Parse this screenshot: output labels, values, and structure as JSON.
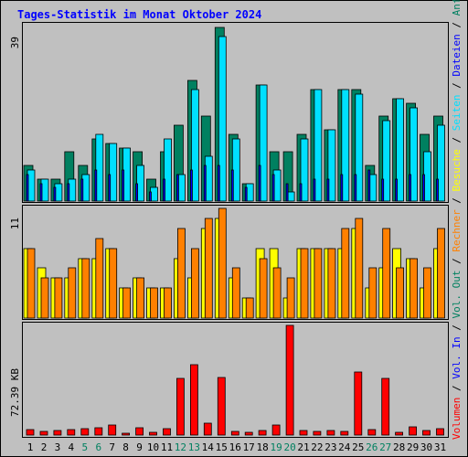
{
  "chart_data": [
    {
      "type": "bar",
      "title": "Tages-Statistik im Monat Oktober 2024",
      "y_max_label": "39",
      "categories": [
        "1",
        "2",
        "3",
        "4",
        "5",
        "6",
        "7",
        "8",
        "9",
        "10",
        "11",
        "12",
        "13",
        "14",
        "15",
        "16",
        "17",
        "18",
        "19",
        "20",
        "21",
        "22",
        "23",
        "24",
        "25",
        "26",
        "27",
        "28",
        "29",
        "30",
        "31"
      ],
      "weekend_days": [
        "5",
        "6",
        "12",
        "13",
        "19",
        "20",
        "26",
        "27"
      ],
      "ylim": [
        0,
        39
      ],
      "series": [
        {
          "name": "Anfragen",
          "color": "#008060",
          "values": [
            8,
            5,
            5,
            11,
            8,
            14,
            13,
            12,
            11,
            5,
            11,
            17,
            27,
            19,
            39,
            15,
            4,
            26,
            11,
            11,
            15,
            25,
            16,
            25,
            25,
            8,
            19,
            23,
            22,
            15,
            19
          ]
        },
        {
          "name": "Seiten",
          "color": "#00e0ff",
          "values": [
            7,
            5,
            4,
            5,
            6,
            15,
            13,
            12,
            8,
            3,
            14,
            6,
            25,
            10,
            37,
            14,
            4,
            26,
            7,
            2,
            14,
            25,
            16,
            25,
            24,
            6,
            18,
            23,
            21,
            11,
            17
          ]
        },
        {
          "name": "Dateien",
          "color": "#0000ff",
          "values": [
            6,
            4,
            3,
            4,
            5,
            7,
            6,
            7,
            4,
            2,
            5,
            6,
            7,
            8,
            8,
            7,
            3,
            8,
            6,
            4,
            4,
            5,
            5,
            6,
            6,
            7,
            5,
            5,
            6,
            6,
            5
          ]
        }
      ],
      "right_labels": [
        {
          "text": "Anfragen",
          "color": "#008060"
        },
        {
          "text": "Dateien",
          "color": "#0000ff"
        },
        {
          "text": "Seiten",
          "color": "#00e0ff"
        }
      ]
    },
    {
      "type": "bar",
      "y_max_label": "11",
      "ylim": [
        0,
        11
      ],
      "series": [
        {
          "name": "Besuche",
          "color": "#ffff00",
          "values": [
            7,
            5,
            4,
            4,
            6,
            6,
            7,
            3,
            4,
            3,
            3,
            6,
            4,
            9,
            10,
            4,
            2,
            7,
            7,
            2,
            7,
            7,
            7,
            7,
            9,
            3,
            5,
            7,
            6,
            3,
            7
          ]
        },
        {
          "name": "Rechner",
          "color": "#ff8000",
          "values": [
            7,
            4,
            4,
            5,
            6,
            8,
            7,
            3,
            4,
            3,
            3,
            9,
            7,
            10,
            11,
            5,
            2,
            6,
            5,
            4,
            7,
            7,
            7,
            9,
            10,
            5,
            9,
            5,
            6,
            5,
            9
          ]
        }
      ],
      "right_labels": [
        {
          "text": "Besuche",
          "color": "#ffff00"
        },
        {
          "text": "Rechner",
          "color": "#ff8000"
        },
        {
          "text": "Vol. Out",
          "color": "#008060"
        },
        {
          "text": "Vol. In",
          "color": "#0000ff"
        }
      ]
    },
    {
      "type": "bar",
      "y_max_label": "72.39 KB",
      "ylim": [
        0,
        72.39
      ],
      "series": [
        {
          "name": "Volumen",
          "color": "#ff0000",
          "values": [
            3.5,
            2.4,
            3,
            3.8,
            4.3,
            4.8,
            6.8,
            1.5,
            4.9,
            1.9,
            4,
            37.3,
            46.7,
            7.6,
            37.8,
            2.5,
            1.7,
            3,
            6.9,
            72.2,
            3.1,
            2.4,
            3,
            2.5,
            41.4,
            3.6,
            37.5,
            2,
            5.6,
            2.9,
            4.3
          ]
        }
      ],
      "right_labels": [
        {
          "text": "Volumen",
          "color": "#ff0000"
        }
      ]
    }
  ],
  "text_colors": {
    "default": "#000000",
    "weekend": "#008060",
    "title": "#0000ff"
  }
}
